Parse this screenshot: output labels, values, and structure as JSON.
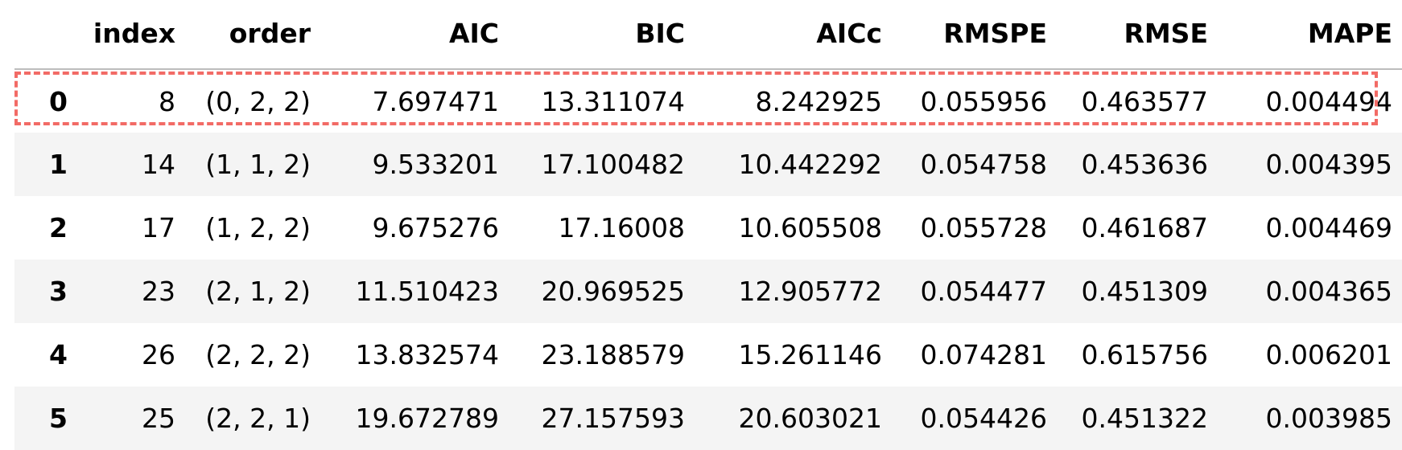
{
  "table": {
    "columns": [
      "",
      "index",
      "order",
      "AIC",
      "BIC",
      "AICc",
      "RMSPE",
      "RMSE",
      "MAPE"
    ],
    "rows": [
      {
        "label": "0",
        "cells": [
          "8",
          "(0, 2, 2)",
          "7.697471",
          "13.311074",
          "8.242925",
          "0.055956",
          "0.463577",
          "0.004494"
        ]
      },
      {
        "label": "1",
        "cells": [
          "14",
          "(1, 1, 2)",
          "9.533201",
          "17.100482",
          "10.442292",
          "0.054758",
          "0.453636",
          "0.004395"
        ]
      },
      {
        "label": "2",
        "cells": [
          "17",
          "(1, 2, 2)",
          "9.675276",
          "17.16008",
          "10.605508",
          "0.055728",
          "0.461687",
          "0.004469"
        ]
      },
      {
        "label": "3",
        "cells": [
          "23",
          "(2, 1, 2)",
          "11.510423",
          "20.969525",
          "12.905772",
          "0.054477",
          "0.451309",
          "0.004365"
        ]
      },
      {
        "label": "4",
        "cells": [
          "26",
          "(2, 2, 2)",
          "13.832574",
          "23.188579",
          "15.261146",
          "0.074281",
          "0.615756",
          "0.006201"
        ]
      },
      {
        "label": "5",
        "cells": [
          "25",
          "(2, 2, 1)",
          "19.672789",
          "27.157593",
          "20.603021",
          "0.054426",
          "0.451322",
          "0.003985"
        ]
      }
    ],
    "highlighted_row": "0"
  },
  "colors": {
    "highlight_border": "#f26b66",
    "stripe": "#f4f4f4",
    "header_rule": "#bdbdbd"
  }
}
